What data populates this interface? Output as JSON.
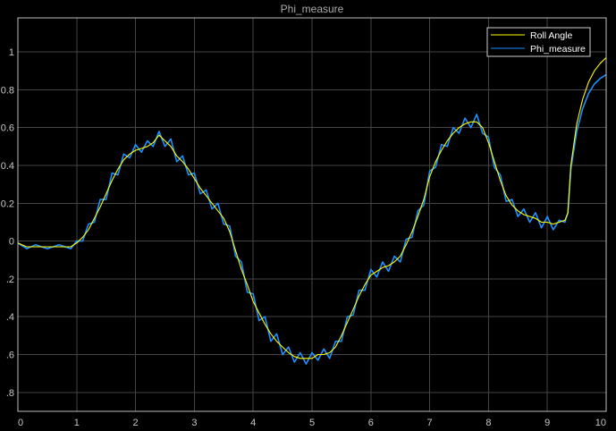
{
  "chart_data": {
    "type": "line",
    "title": "Phi_measure",
    "xlabel": "",
    "ylabel": "",
    "xlim": [
      0,
      10
    ],
    "ylim": [
      -0.9,
      1.18
    ],
    "grid": true,
    "legend_position": "top-right",
    "background": "#000000",
    "x_ticks": [
      0,
      1,
      2,
      3,
      4,
      5,
      6,
      7,
      8,
      9,
      10
    ],
    "x_tick_labels": [
      "0",
      "1",
      "2",
      "3",
      "4",
      "5",
      "6",
      "7",
      "8",
      "9",
      "10"
    ],
    "y_ticks": [
      -0.8,
      -0.6,
      -0.4,
      -0.2,
      0,
      0.2,
      0.4,
      0.6,
      0.8,
      1
    ],
    "y_tick_labels": [
      ".8",
      ".6",
      ".4",
      ".2",
      "0",
      "0.2",
      "0.4",
      "0.6",
      "0.8",
      "1"
    ],
    "series": [
      {
        "name": "Roll Angle",
        "color": "#ffff00",
        "x": [
          0,
          0.15,
          0.3,
          0.5,
          0.7,
          0.9,
          1.0,
          1.1,
          1.2,
          1.3,
          1.4,
          1.5,
          1.6,
          1.7,
          1.8,
          1.9,
          2.0,
          2.1,
          2.2,
          2.3,
          2.4,
          2.5,
          2.6,
          2.7,
          2.8,
          2.9,
          3.0,
          3.1,
          3.2,
          3.3,
          3.4,
          3.5,
          3.6,
          3.7,
          3.8,
          3.9,
          4.0,
          4.1,
          4.2,
          4.3,
          4.4,
          4.5,
          4.6,
          4.7,
          4.8,
          4.9,
          5.0,
          5.1,
          5.2,
          5.3,
          5.4,
          5.5,
          5.6,
          5.7,
          5.8,
          5.9,
          6.0,
          6.1,
          6.2,
          6.3,
          6.4,
          6.5,
          6.6,
          6.7,
          6.8,
          6.9,
          7.0,
          7.1,
          7.2,
          7.3,
          7.4,
          7.5,
          7.6,
          7.7,
          7.8,
          7.9,
          8.0,
          8.1,
          8.2,
          8.3,
          8.4,
          8.5,
          8.6,
          8.7,
          8.8,
          8.9,
          9.0,
          9.1,
          9.2,
          9.3,
          9.35,
          9.4,
          9.5,
          9.6,
          9.7,
          9.8,
          9.9,
          10.0
        ],
        "y": [
          -0.01,
          -0.03,
          -0.03,
          -0.03,
          -0.03,
          -0.03,
          -0.01,
          0.02,
          0.06,
          0.12,
          0.18,
          0.25,
          0.32,
          0.38,
          0.43,
          0.46,
          0.48,
          0.49,
          0.5,
          0.52,
          0.56,
          0.53,
          0.5,
          0.45,
          0.42,
          0.38,
          0.33,
          0.28,
          0.24,
          0.2,
          0.16,
          0.12,
          0.05,
          -0.05,
          -0.15,
          -0.23,
          -0.32,
          -0.38,
          -0.44,
          -0.49,
          -0.53,
          -0.56,
          -0.59,
          -0.61,
          -0.62,
          -0.62,
          -0.62,
          -0.6,
          -0.6,
          -0.59,
          -0.56,
          -0.5,
          -0.43,
          -0.36,
          -0.29,
          -0.23,
          -0.18,
          -0.16,
          -0.14,
          -0.13,
          -0.11,
          -0.08,
          -0.02,
          0.05,
          0.13,
          0.22,
          0.34,
          0.42,
          0.48,
          0.53,
          0.57,
          0.6,
          0.62,
          0.63,
          0.63,
          0.6,
          0.52,
          0.42,
          0.32,
          0.24,
          0.19,
          0.16,
          0.14,
          0.13,
          0.12,
          0.1,
          0.1,
          0.09,
          0.1,
          0.11,
          0.15,
          0.4,
          0.62,
          0.75,
          0.84,
          0.9,
          0.94,
          0.97
        ]
      },
      {
        "name": "Phi_measure",
        "color": "#1e90ff",
        "x": [
          0,
          0.15,
          0.3,
          0.5,
          0.7,
          0.9,
          1.0,
          1.1,
          1.2,
          1.3,
          1.4,
          1.5,
          1.6,
          1.7,
          1.8,
          1.9,
          2.0,
          2.1,
          2.2,
          2.3,
          2.4,
          2.5,
          2.6,
          2.7,
          2.8,
          2.9,
          3.0,
          3.1,
          3.2,
          3.3,
          3.4,
          3.5,
          3.6,
          3.7,
          3.8,
          3.9,
          4.0,
          4.1,
          4.2,
          4.3,
          4.4,
          4.5,
          4.6,
          4.7,
          4.8,
          4.9,
          5.0,
          5.1,
          5.2,
          5.3,
          5.4,
          5.5,
          5.6,
          5.7,
          5.8,
          5.9,
          6.0,
          6.1,
          6.2,
          6.3,
          6.4,
          6.5,
          6.6,
          6.7,
          6.8,
          6.9,
          7.0,
          7.1,
          7.2,
          7.3,
          7.4,
          7.5,
          7.6,
          7.7,
          7.8,
          7.9,
          8.0,
          8.1,
          8.2,
          8.3,
          8.4,
          8.5,
          8.6,
          8.7,
          8.8,
          8.9,
          9.0,
          9.1,
          9.2,
          9.3,
          9.35,
          9.4,
          9.5,
          9.6,
          9.7,
          9.8,
          9.9,
          10.0
        ],
        "y": [
          -0.01,
          -0.04,
          -0.02,
          -0.04,
          -0.02,
          -0.04,
          0.0,
          0.0,
          0.09,
          0.1,
          0.22,
          0.22,
          0.36,
          0.35,
          0.46,
          0.44,
          0.51,
          0.47,
          0.53,
          0.5,
          0.58,
          0.5,
          0.54,
          0.42,
          0.45,
          0.35,
          0.36,
          0.25,
          0.27,
          0.17,
          0.2,
          0.09,
          0.08,
          -0.08,
          -0.11,
          -0.27,
          -0.28,
          -0.42,
          -0.4,
          -0.53,
          -0.49,
          -0.6,
          -0.56,
          -0.64,
          -0.59,
          -0.65,
          -0.59,
          -0.63,
          -0.57,
          -0.62,
          -0.53,
          -0.53,
          -0.4,
          -0.39,
          -0.26,
          -0.26,
          -0.15,
          -0.19,
          -0.11,
          -0.16,
          -0.08,
          -0.11,
          0.01,
          0.02,
          0.16,
          0.19,
          0.37,
          0.39,
          0.51,
          0.5,
          0.6,
          0.57,
          0.65,
          0.6,
          0.67,
          0.57,
          0.55,
          0.39,
          0.35,
          0.21,
          0.22,
          0.13,
          0.17,
          0.1,
          0.15,
          0.07,
          0.13,
          0.06,
          0.11,
          0.1,
          0.15,
          0.38,
          0.58,
          0.7,
          0.78,
          0.83,
          0.86,
          0.88
        ]
      }
    ]
  }
}
